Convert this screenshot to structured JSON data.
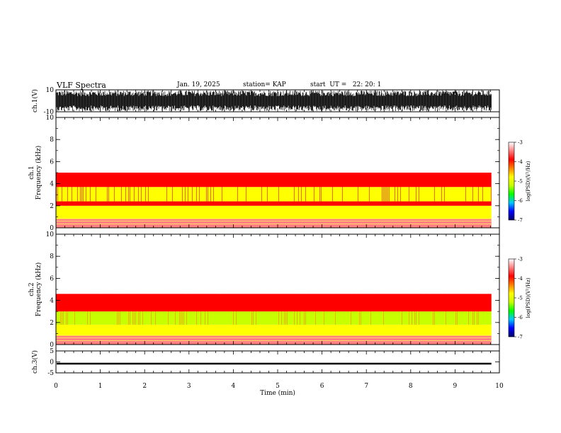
{
  "header": {
    "title": "VLF Spectra",
    "date": "Jan. 19, 2025",
    "station": "station= KAP",
    "start": "start  UT =   22: 20: 1"
  },
  "chart_data": [
    {
      "type": "line",
      "panel": "ch1-waveform",
      "ylabel": "ch.1(V)",
      "ylim": [
        -10,
        10
      ],
      "yticks": [
        10,
        -10
      ],
      "xlim": [
        0,
        10
      ],
      "color": "#000000",
      "description_values": {
        "approx_amplitude_V": 10,
        "data_end_min": 9.82
      }
    },
    {
      "type": "heatmap",
      "panel": "ch1-spectrogram",
      "ylabel_line1": "ch.1",
      "ylabel_line2": "Frequency (kHz)",
      "ylim": [
        0,
        10
      ],
      "yticks": [
        0,
        2,
        4,
        6,
        8,
        10
      ],
      "xlim": [
        0,
        10
      ],
      "data_end_min": 9.82,
      "bands": [
        {
          "from": 0,
          "to": 0.8,
          "level": -3.6
        },
        {
          "from": 0.8,
          "to": 2.0,
          "level": -4.9
        },
        {
          "from": 2.0,
          "to": 2.4,
          "level": -3.9
        },
        {
          "from": 2.4,
          "to": 3.7,
          "level": -4.9
        },
        {
          "from": 3.7,
          "to": 5.0,
          "level": -4.0
        },
        {
          "from": 5.0,
          "to": 10,
          "level": -3.4
        }
      ],
      "colorbar": {
        "label": "log(PSD)(V²/Hz)",
        "range": [
          -7,
          -3
        ],
        "ticks": [
          -3,
          -4,
          -5,
          -6,
          -7
        ],
        "colors": [
          "#000066",
          "#0000ff",
          "#00c8ff",
          "#00ff00",
          "#c8ff00",
          "#ffff00",
          "#ff8000",
          "#ff0000",
          "#ff8080",
          "#ffffff"
        ]
      }
    },
    {
      "type": "heatmap",
      "panel": "ch2-spectrogram",
      "ylabel_line1": "ch.2",
      "ylabel_line2": "Frequency (kHz)",
      "ylim": [
        0,
        10
      ],
      "yticks": [
        0,
        2,
        4,
        6,
        8,
        10
      ],
      "xlim": [
        0,
        10
      ],
      "data_end_min": 9.82,
      "bands": [
        {
          "from": 0,
          "to": 0.8,
          "level": -3.6
        },
        {
          "from": 0.8,
          "to": 1.8,
          "level": -5.0
        },
        {
          "from": 1.8,
          "to": 3.0,
          "level": -5.3
        },
        {
          "from": 3.0,
          "to": 4.6,
          "level": -4.0
        },
        {
          "from": 4.6,
          "to": 10,
          "level": -3.4
        }
      ],
      "colorbar": {
        "label": "log(PSD)(V²/Hz)",
        "range": [
          -7,
          -3
        ],
        "ticks": [
          -3,
          -4,
          -5,
          -6,
          -7
        ],
        "colors": [
          "#000066",
          "#0000ff",
          "#00c8ff",
          "#00ff00",
          "#c8ff00",
          "#ffff00",
          "#ff8000",
          "#ff0000",
          "#ff8080",
          "#ffffff"
        ]
      }
    },
    {
      "type": "line",
      "panel": "ch3-waveform",
      "ylabel": "ch.3(V)",
      "ylim": [
        -5,
        5
      ],
      "yticks": [
        5,
        0,
        -5
      ],
      "xlim": [
        0,
        10
      ],
      "xticks": [
        0,
        1,
        2,
        3,
        4,
        5,
        6,
        7,
        8,
        9,
        10
      ],
      "xlabel": "Time (min)",
      "color": "#000000",
      "description_values": {
        "center_V": -0.8,
        "band_halfwidth_V": 0.4,
        "data_end_min": 9.82
      }
    }
  ]
}
